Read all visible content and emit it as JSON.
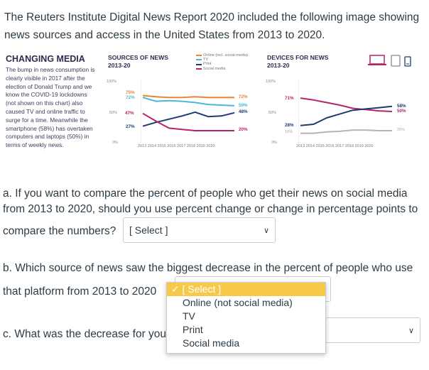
{
  "intro": "The Reuters Institute Digital News Report 2020 included the following image showing news sources and access in the United States from 2013 to 2020.",
  "infographic": {
    "title": "CHANGING MEDIA",
    "body": "The bump in news consumption is clearly visible in 2017 after the election of Donald Trump and we know the COVID-19 lockdowns (not shown on this chart) also caused TV and online traffic to surge for a time. Meanwhile the smartphone (58%) has overtaken computers and laptops (50%) in terms of weekly news.",
    "sources_title_1": "SOURCES OF NEWS",
    "sources_title_2": "2013-20",
    "devices_title_1": "DEVICES FOR NEWS",
    "devices_title_2": "2013-20",
    "legend": [
      "Online (incl. social media)",
      "TV",
      "Print",
      "Social media"
    ],
    "axis": [
      "100%",
      "50%",
      "0%"
    ],
    "years": "2013  2014  2015  2016  2017  2018  2019  2020",
    "colors": {
      "online": "#e8833a",
      "tv": "#4bb8d4",
      "print": "#1d3b6e",
      "social": "#b4246b",
      "gray": "#b5b5b5"
    },
    "device_icons": [
      "laptop-icon",
      "tablet-icon",
      "phone-icon"
    ]
  },
  "chart_data": [
    {
      "type": "line",
      "title": "SOURCES OF NEWS 2013-20",
      "x": [
        2013,
        2014,
        2015,
        2016,
        2017,
        2018,
        2019,
        2020
      ],
      "ylim": [
        0,
        100
      ],
      "series": [
        {
          "name": "Online (incl. social media)",
          "values": [
            75,
            73,
            72,
            72,
            73,
            72,
            72,
            72
          ]
        },
        {
          "name": "TV",
          "values": [
            72,
            66,
            67,
            66,
            64,
            61,
            60,
            59
          ]
        },
        {
          "name": "Print",
          "values": [
            27,
            33,
            38,
            43,
            49,
            42,
            43,
            48
          ]
        },
        {
          "name": "Social media",
          "values": [
            47,
            35,
            24,
            22,
            20,
            20,
            20,
            20
          ]
        }
      ],
      "labels": {
        "start": [
          "75%",
          "72%",
          "47%",
          "27%"
        ],
        "end": [
          "72%",
          "59%",
          "48%",
          "20%"
        ]
      }
    },
    {
      "type": "line",
      "title": "DEVICES FOR NEWS 2013-20",
      "x": [
        2013,
        2014,
        2015,
        2016,
        2017,
        2018,
        2019,
        2020
      ],
      "ylim": [
        0,
        100
      ],
      "series": [
        {
          "values": [
            71,
            68,
            64,
            60,
            55,
            53,
            51,
            50
          ]
        },
        {
          "values": [
            28,
            30,
            40,
            46,
            52,
            54,
            56,
            58
          ]
        },
        {
          "values": [
            16,
            16,
            18,
            19,
            21,
            21,
            20,
            20
          ]
        }
      ],
      "labels": {
        "start": [
          "71%",
          "28%",
          "16%"
        ],
        "end": [
          "58%",
          "50%",
          "20%"
        ]
      }
    }
  ],
  "questions": {
    "a_line1": "a. If you want to compare the percent of people who get their news on social media",
    "a_line2": "from 2013 to 2020, should you use percent change or change in percentage points to",
    "a_line3": "compare the numbers?",
    "a_select": "[ Select ]",
    "b_line1": "b. Which source of news saw the biggest decrease in the percent of people who use",
    "b_line2": "that platform from 2013 to 2020",
    "c_line1": "c. What was the decrease for you"
  },
  "dropdown": {
    "selected": "✓ [ Select ]",
    "options": [
      "Online (not social media)",
      "TV",
      "Print",
      "Social media"
    ]
  }
}
